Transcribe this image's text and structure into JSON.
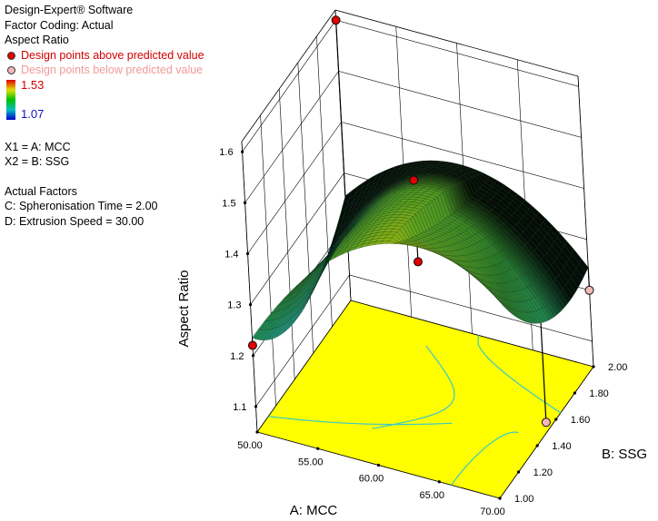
{
  "info": {
    "software": "Design-Expert® Software",
    "coding": "Factor Coding: Actual",
    "response": "Aspect Ratio",
    "legend_above": "Design points above predicted value",
    "legend_below": "Design points below predicted value",
    "color_above": "#e00000",
    "color_below": "#f4b8b8",
    "color_high": "1.53",
    "color_low": "1.07",
    "x1": "X1 = A: MCC",
    "x2": "X2 = B: SSG",
    "actual_factors": "Actual Factors",
    "factor_c": "C: Spheronisation Time = 2.00",
    "factor_d": "D: Extrusion Speed = 30.00"
  },
  "chart_data": {
    "type": "surface3d",
    "title": "",
    "xlabel": "A: MCC",
    "ylabel": "B: SSG",
    "zlabel": "Aspect Ratio",
    "xlim": [
      50,
      70
    ],
    "ylim": [
      1.0,
      2.0
    ],
    "zlim": [
      1.1,
      1.6
    ],
    "x_ticks": [
      "50.00",
      "55.00",
      "60.00",
      "65.00",
      "70.00"
    ],
    "y_ticks": [
      "1.00",
      "1.20",
      "1.40",
      "1.60",
      "1.80",
      "2.00"
    ],
    "z_ticks": [
      "1.1",
      "1.2",
      "1.3",
      "1.4",
      "1.5",
      "1.6"
    ],
    "color_range": [
      1.07,
      1.53
    ],
    "surface_corners": [
      {
        "A": 50,
        "B": 1.0,
        "z": 1.18
      },
      {
        "A": 70,
        "B": 1.0,
        "z": 1.3
      },
      {
        "A": 50,
        "B": 2.0,
        "z": 1.31
      },
      {
        "A": 70,
        "B": 2.0,
        "z": 1.19
      }
    ],
    "design_points": [
      {
        "A": 50,
        "B": 1.0,
        "z": 1.22,
        "position": "above"
      },
      {
        "A": 60,
        "B": 1.5,
        "z": 1.48,
        "position": "above"
      },
      {
        "A": 60,
        "B": 1.5,
        "z": 1.32,
        "position": "above"
      },
      {
        "A": 50,
        "B": 2.0,
        "z": 1.6,
        "position": "above"
      },
      {
        "A": 70,
        "B": 1.5,
        "z": 1.07,
        "position": "below"
      },
      {
        "A": 70,
        "B": 2.0,
        "z": 1.2,
        "position": "below"
      }
    ]
  }
}
